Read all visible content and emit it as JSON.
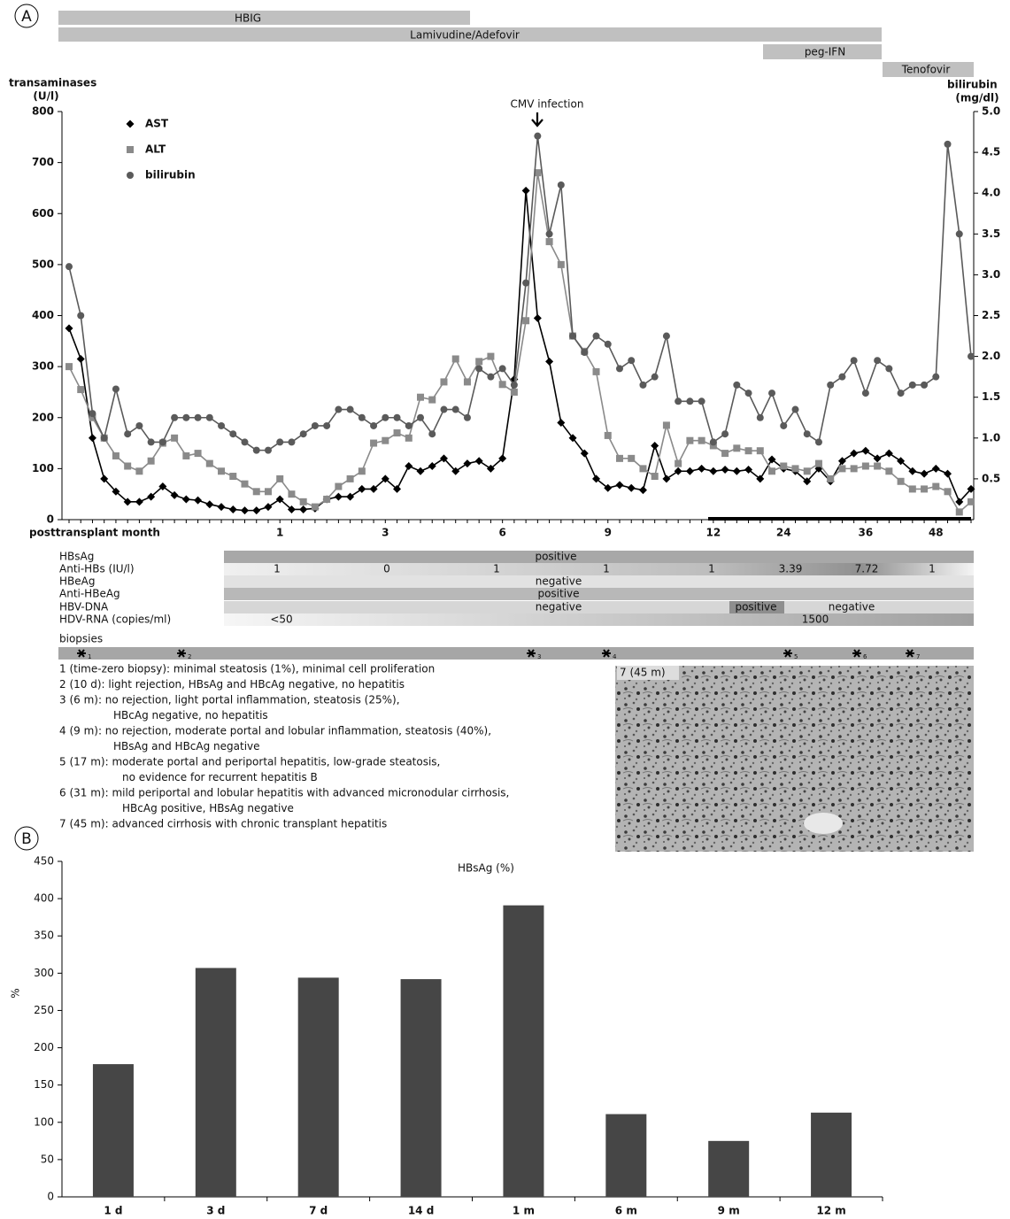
{
  "panels": [
    "A",
    "B"
  ],
  "treatments": [
    "HBIG",
    "Lamivudine/Adefovir",
    "peg-IFN",
    "Tenofovir"
  ],
  "chart_data": [
    {
      "type": "line",
      "y_label": [
        "transaminases",
        "(U/l)"
      ],
      "y2_label": [
        "bilirubin",
        "(mg/dl)"
      ],
      "x_label": "posttransplant month",
      "annotation": "CMV infection",
      "categories": [
        null,
        null,
        null,
        null,
        null,
        null,
        null,
        null,
        null,
        null,
        null,
        null,
        null,
        null,
        null,
        null,
        null,
        null,
        "1",
        null,
        null,
        null,
        null,
        null,
        null,
        null,
        null,
        "3",
        null,
        null,
        null,
        null,
        null,
        null,
        null,
        null,
        null,
        "6",
        null,
        null,
        null,
        null,
        null,
        null,
        null,
        null,
        "9",
        null,
        null,
        null,
        null,
        null,
        null,
        null,
        null,
        "12",
        null,
        null,
        null,
        null,
        null,
        "24",
        null,
        null,
        null,
        null,
        null,
        null,
        "36",
        null,
        null,
        null,
        null,
        null,
        "48",
        null,
        null,
        null
      ],
      "ylim": [
        0,
        800
      ],
      "yticks": [
        0,
        100,
        200,
        300,
        400,
        500,
        600,
        700,
        800
      ],
      "y2lim": [
        0,
        5
      ],
      "y2ticks": [
        0.5,
        {
          "value": 1,
          "label": "1.0"
        },
        1.5,
        {
          "value": 2,
          "label": "2.0"
        },
        2.5,
        {
          "value": 3,
          "label": "3.0"
        },
        3.5,
        {
          "value": 4,
          "label": "4.0"
        },
        4.5,
        {
          "value": 5,
          "label": "5.0"
        }
      ],
      "series": [
        {
          "name": "AST",
          "color": "#000000",
          "marker": "diamond",
          "values": [
            375,
            315,
            160,
            80,
            55,
            35,
            35,
            45,
            65,
            48,
            40,
            38,
            30,
            25,
            20,
            18,
            18,
            25,
            40,
            20,
            20,
            22,
            40,
            45,
            45,
            60,
            60,
            80,
            60,
            105,
            95,
            105,
            120,
            95,
            110,
            115,
            100,
            120,
            275,
            645,
            395,
            310,
            190,
            160,
            130,
            80,
            62,
            68,
            62,
            58,
            145,
            80,
            95,
            95,
            100,
            95,
            98,
            95,
            98,
            80,
            118,
            100,
            95,
            75,
            100,
            75,
            115,
            130,
            135,
            120,
            130,
            115,
            95,
            90,
            100,
            90,
            35,
            60
          ]
        },
        {
          "name": "ALT",
          "color": "#8a8a8a",
          "marker": "square",
          "values": [
            300,
            255,
            200,
            160,
            125,
            105,
            95,
            115,
            150,
            160,
            125,
            130,
            110,
            95,
            85,
            70,
            55,
            55,
            80,
            50,
            35,
            25,
            40,
            65,
            80,
            95,
            150,
            155,
            170,
            160,
            240,
            235,
            270,
            315,
            270,
            310,
            320,
            265,
            250,
            390,
            680,
            545,
            500,
            360,
            330,
            290,
            165,
            120,
            120,
            100,
            85,
            185,
            110,
            155,
            155,
            145,
            130,
            140,
            135,
            135,
            95,
            105,
            100,
            95,
            110,
            80,
            100,
            100,
            105,
            105,
            95,
            75,
            60,
            60,
            65,
            55,
            15,
            35
          ]
        },
        {
          "name": "bilirubin",
          "color": "#5a5a5a",
          "marker": "circle",
          "axis": "y2",
          "values": [
            3.1,
            2.5,
            1.3,
            1.0,
            1.6,
            1.05,
            1.15,
            0.95,
            0.95,
            1.25,
            1.25,
            1.25,
            1.25,
            1.15,
            1.05,
            0.95,
            0.85,
            0.85,
            0.95,
            0.95,
            1.05,
            1.15,
            1.15,
            1.35,
            1.35,
            1.25,
            1.15,
            1.25,
            1.25,
            1.15,
            1.25,
            1.05,
            1.35,
            1.35,
            1.25,
            1.85,
            1.75,
            1.85,
            1.65,
            2.9,
            4.7,
            3.5,
            4.1,
            2.25,
            2.05,
            2.25,
            2.15,
            1.85,
            1.95,
            1.65,
            1.75,
            2.25,
            1.45,
            1.45,
            1.45,
            0.95,
            1.05,
            1.65,
            1.55,
            1.25,
            1.55,
            1.15,
            1.35,
            1.05,
            0.95,
            1.65,
            1.75,
            1.95,
            1.55,
            1.95,
            1.85,
            1.55,
            1.65,
            1.65,
            1.75,
            4.6,
            3.5,
            2.0
          ]
        }
      ]
    },
    {
      "type": "bar",
      "title": "HBsAg (%)",
      "y_label": "%",
      "categories": [
        "1 d",
        "3 d",
        "7 d",
        "14 d",
        "1 m",
        "6 m",
        "9 m",
        "12 m"
      ],
      "values": [
        178,
        307,
        294,
        292,
        391,
        111,
        75,
        113
      ],
      "color": "#464646",
      "ylim": [
        0,
        450
      ],
      "yticks": [
        0,
        50,
        100,
        150,
        200,
        250,
        300,
        350,
        400,
        450
      ]
    }
  ],
  "serology": [
    {
      "label": "HBsAg",
      "values": [
        "positive"
      ]
    },
    {
      "label": "Anti-HBs (IU/l)",
      "values": [
        1,
        0,
        1,
        1,
        1,
        3.39,
        7.72,
        1
      ]
    },
    {
      "label": "HBeAg",
      "values": [
        "negative"
      ]
    },
    {
      "label": "Anti-HBeAg",
      "values": [
        "positive"
      ]
    },
    {
      "label": "HBV-DNA",
      "values": [
        "negative",
        "positive",
        "negative"
      ]
    },
    {
      "label": "HDV-RNA (copies/ml)",
      "values": [
        "<50",
        1500
      ]
    }
  ],
  "biopsies": {
    "label": "biopsies",
    "markers": [
      "1",
      "2",
      "3",
      "4",
      "5",
      "6",
      "7"
    ],
    "image_label": "7 (45 m)",
    "descriptions": [
      [
        "1 (time-zero biopsy): minimal steatosis (1%), minimal cell proliferation"
      ],
      [
        "2 (10 d): light rejection, HBsAg and HBcAg negative, no hepatitis"
      ],
      [
        "3 (6 m): no rejection, light portal inflammation, steatosis (25%),",
        "HBcAg negative, no hepatitis"
      ],
      [
        "4 (9 m): no rejection, moderate portal and lobular inflammation, steatosis (40%),",
        "HBsAg and HBcAg negative"
      ],
      [
        "5 (17 m): moderate portal and periportal hepatitis, low-grade steatosis,",
        "no evidence for recurrent hepatitis B"
      ],
      [
        "6 (31 m): mild periportal and lobular hepatitis with advanced micronodular cirrhosis,",
        "HBcAg positive, HBsAg negative"
      ],
      [
        "7 (45 m): advanced cirrhosis with chronic transplant hepatitis"
      ]
    ]
  }
}
